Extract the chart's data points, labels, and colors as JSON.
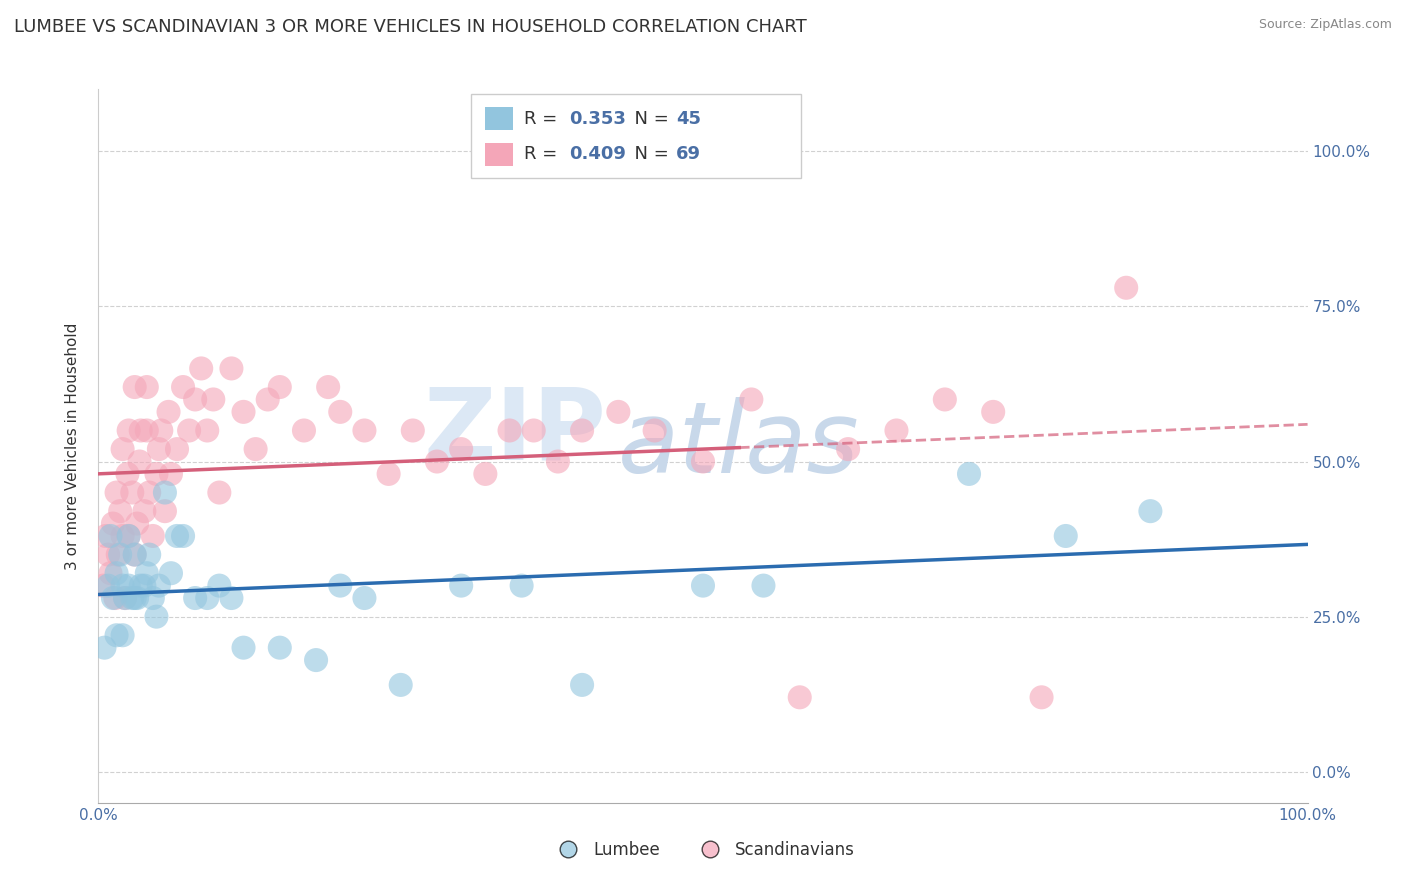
{
  "title": "LUMBEE VS SCANDINAVIAN 3 OR MORE VEHICLES IN HOUSEHOLD CORRELATION CHART",
  "source": "Source: ZipAtlas.com",
  "ylabel": "3 or more Vehicles in Household",
  "xlim": [
    0,
    1
  ],
  "ylim": [
    -0.05,
    1.1
  ],
  "yticks": [
    0.0,
    0.25,
    0.5,
    0.75,
    1.0
  ],
  "ytick_labels": [
    "0.0%",
    "25.0%",
    "50.0%",
    "75.0%",
    "100.0%"
  ],
  "lumbee_color": "#92c5de",
  "scandinavian_color": "#f4a6b8",
  "lumbee_line_color": "#2b6cb0",
  "scandinavian_line_color": "#d45f7a",
  "lumbee_R": 0.353,
  "lumbee_N": 45,
  "scandinavian_R": 0.409,
  "scandinavian_N": 69,
  "legend_label_lumbee": "Lumbee",
  "legend_label_scandinavian": "Scandinavians",
  "watermark_zip": "ZIP",
  "watermark_atlas": "atlas",
  "lumbee_x": [
    0.005,
    0.008,
    0.01,
    0.012,
    0.015,
    0.015,
    0.018,
    0.02,
    0.02,
    0.022,
    0.025,
    0.025,
    0.028,
    0.03,
    0.03,
    0.032,
    0.035,
    0.038,
    0.04,
    0.042,
    0.045,
    0.048,
    0.05,
    0.055,
    0.06,
    0.065,
    0.07,
    0.08,
    0.09,
    0.1,
    0.11,
    0.12,
    0.15,
    0.18,
    0.2,
    0.22,
    0.25,
    0.3,
    0.35,
    0.4,
    0.5,
    0.55,
    0.72,
    0.8,
    0.87
  ],
  "lumbee_y": [
    0.2,
    0.3,
    0.38,
    0.28,
    0.32,
    0.22,
    0.35,
    0.3,
    0.22,
    0.28,
    0.3,
    0.38,
    0.28,
    0.35,
    0.28,
    0.28,
    0.3,
    0.3,
    0.32,
    0.35,
    0.28,
    0.25,
    0.3,
    0.45,
    0.32,
    0.38,
    0.38,
    0.28,
    0.28,
    0.3,
    0.28,
    0.2,
    0.2,
    0.18,
    0.3,
    0.28,
    0.14,
    0.3,
    0.3,
    0.14,
    0.3,
    0.3,
    0.48,
    0.38,
    0.42
  ],
  "scandinavian_x": [
    0.004,
    0.006,
    0.008,
    0.01,
    0.012,
    0.014,
    0.015,
    0.016,
    0.018,
    0.02,
    0.02,
    0.022,
    0.024,
    0.025,
    0.025,
    0.028,
    0.03,
    0.03,
    0.032,
    0.034,
    0.035,
    0.038,
    0.04,
    0.04,
    0.042,
    0.045,
    0.048,
    0.05,
    0.052,
    0.055,
    0.058,
    0.06,
    0.065,
    0.07,
    0.075,
    0.08,
    0.085,
    0.09,
    0.095,
    0.1,
    0.11,
    0.12,
    0.13,
    0.14,
    0.15,
    0.17,
    0.19,
    0.2,
    0.22,
    0.24,
    0.26,
    0.28,
    0.3,
    0.32,
    0.34,
    0.36,
    0.38,
    0.4,
    0.43,
    0.46,
    0.5,
    0.54,
    0.58,
    0.62,
    0.66,
    0.7,
    0.74,
    0.78,
    0.85
  ],
  "scandinavian_y": [
    0.3,
    0.38,
    0.35,
    0.32,
    0.4,
    0.28,
    0.45,
    0.35,
    0.42,
    0.38,
    0.52,
    0.28,
    0.48,
    0.38,
    0.55,
    0.45,
    0.62,
    0.35,
    0.4,
    0.5,
    0.55,
    0.42,
    0.55,
    0.62,
    0.45,
    0.38,
    0.48,
    0.52,
    0.55,
    0.42,
    0.58,
    0.48,
    0.52,
    0.62,
    0.55,
    0.6,
    0.65,
    0.55,
    0.6,
    0.45,
    0.65,
    0.58,
    0.52,
    0.6,
    0.62,
    0.55,
    0.62,
    0.58,
    0.55,
    0.48,
    0.55,
    0.5,
    0.52,
    0.48,
    0.55,
    0.55,
    0.5,
    0.55,
    0.58,
    0.55,
    0.5,
    0.6,
    0.12,
    0.52,
    0.55,
    0.6,
    0.58,
    0.12,
    0.78
  ],
  "title_fontsize": 13,
  "axis_label_fontsize": 11,
  "tick_fontsize": 11,
  "legend_fontsize": 13
}
